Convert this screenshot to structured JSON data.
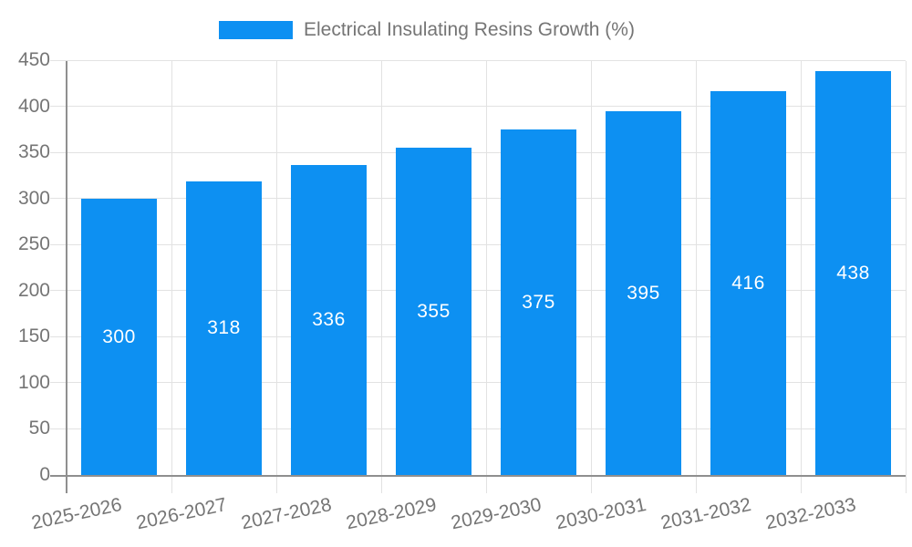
{
  "legend": {
    "label": "Electrical Insulating Resins Growth (%)"
  },
  "chart_data": {
    "type": "bar",
    "title": "Electrical Insulating Resins Growth (%)",
    "xlabel": "",
    "ylabel": "",
    "categories": [
      "2025-2026",
      "2026-2027",
      "2027-2028",
      "2028-2029",
      "2029-2030",
      "2030-2031",
      "2031-2032",
      "2032-2033"
    ],
    "values": [
      300,
      318,
      336,
      355,
      375,
      395,
      416,
      438
    ],
    "bar_labels": [
      "300",
      "318",
      "336",
      "355",
      "375",
      "395",
      "416",
      "438"
    ],
    "ylim": [
      0,
      450
    ],
    "ytick_step": 50,
    "yticks": [
      0,
      50,
      100,
      150,
      200,
      250,
      300,
      350,
      400,
      450
    ],
    "grid": true,
    "legend_position": "top",
    "colors": {
      "bar": "#0d90f2",
      "bar_label": "#ffffff",
      "axis_text": "#757575",
      "grid_line": "#e2e2e2",
      "axis_line": "#8f8f8f",
      "background": "#ffffff"
    }
  }
}
